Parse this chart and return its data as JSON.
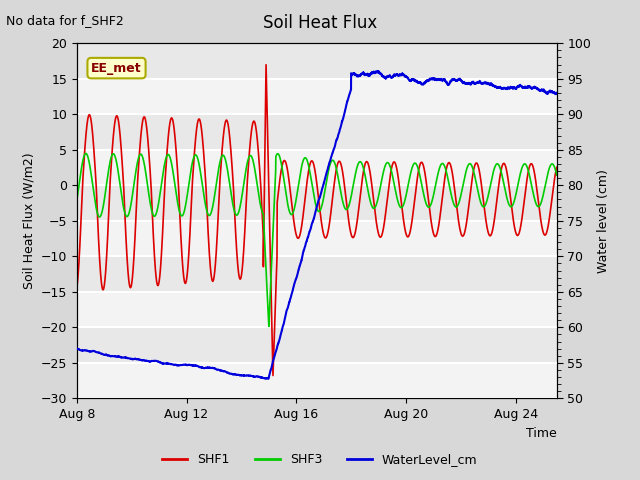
{
  "title": "Soil Heat Flux",
  "subtitle": "No data for f_SHF2",
  "ylabel_left": "Soil Heat Flux (W/m2)",
  "ylabel_right": "Water level (cm)",
  "xlabel": "Time",
  "xlim_days": [
    0,
    17.5
  ],
  "ylim_left": [
    -30,
    20
  ],
  "ylim_right": [
    50,
    100
  ],
  "yticks_left": [
    -30,
    -25,
    -20,
    -15,
    -10,
    -5,
    0,
    5,
    10,
    15,
    20
  ],
  "yticks_right": [
    50,
    55,
    60,
    65,
    70,
    75,
    80,
    85,
    90,
    95,
    100
  ],
  "xtick_labels": [
    "Aug 8",
    "Aug 12",
    "Aug 16",
    "Aug 20",
    "Aug 24"
  ],
  "xtick_positions": [
    0,
    4,
    8,
    12,
    16
  ],
  "background_color": "#d8d8d8",
  "plot_bg_color_light": "#e8e8e8",
  "plot_bg_color_dark": "#d0d0d0",
  "grid_color": "white",
  "shf1_color": "#dd0000",
  "shf3_color": "#00cc00",
  "water_color": "#0000dd",
  "legend_items": [
    "SHF1",
    "SHF3",
    "WaterLevel_cm"
  ],
  "ee_met_label": "EE_met",
  "ee_met_bg": "#ffffcc",
  "ee_met_border": "#aaaa00"
}
